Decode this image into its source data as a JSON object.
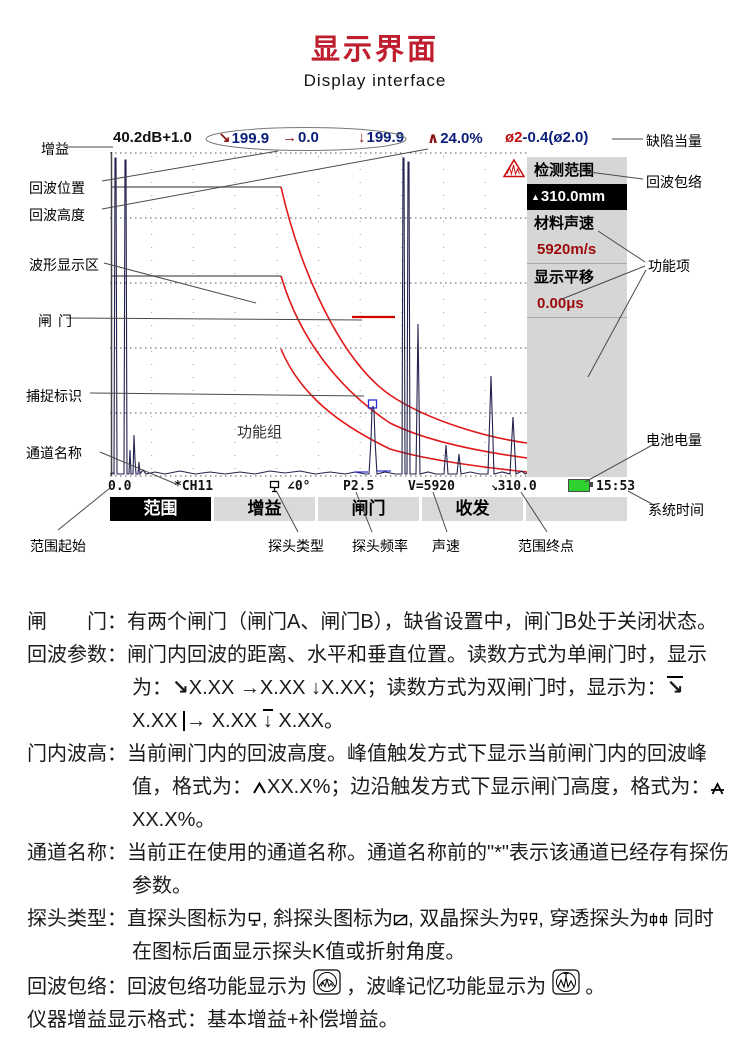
{
  "page": {
    "title": "显示界面",
    "subtitle": "Display interface"
  },
  "screen": {
    "top_bar": {
      "gain": "40.2dB+1.0",
      "echo_depth": "199.9",
      "echo_horizontal": "0.0",
      "echo_vertical": "199.9",
      "gate_peak": "24.0%",
      "defect_equiv_prefix": "ø2",
      "defect_equiv_suffix": "-0.4(ø2.0)"
    },
    "plot": {
      "function_group_label": "功能组"
    },
    "panel": {
      "items": [
        {
          "label": "检测范围",
          "value": "310.0mm"
        },
        {
          "label": "材料声速",
          "value": "5920m/s"
        },
        {
          "label": "显示平移",
          "value": "0.00μs"
        }
      ]
    },
    "bottom_bar": {
      "range_start": "0.0",
      "channel": "*CH11",
      "probe_angle": "∠0°",
      "probe_frequency": "P2.5",
      "velocity": "V=5920",
      "range_end": "310.0",
      "time": "15:53"
    },
    "menu": {
      "items": [
        "范围",
        "增益",
        "闸门",
        "收发"
      ],
      "selected": "范围"
    }
  },
  "callouts": {
    "gain": "增益",
    "echo_position": "回波位置",
    "echo_height": "回波高度",
    "waveform_area": "波形显示区",
    "gate": "闸门",
    "capture_mark": "捕捉标识",
    "channel_name": "通道名称",
    "defect_equivalent": "缺陷当量",
    "echo_envelope": "回波包络",
    "function_items": "功能项",
    "battery_level": "电池电量",
    "system_time": "系统时间",
    "range_start": "范围起始",
    "probe_type": "探头类型",
    "probe_frequency": "探头频率",
    "sound_velocity": "声速",
    "range_end": "范围终点"
  },
  "definitions": {
    "rows": [
      {
        "label": "闸　　门：",
        "segments": [
          {
            "t": "有两个闸门（闸门A、闸门B），缺省设置中，闸门B处于关闭状态。"
          }
        ]
      },
      {
        "label": "回波参数：",
        "segments": [
          {
            "t": "闸门内回波的距离、水平和垂直位置。读数方式为单闸门时，显示为："
          },
          {
            "i": "gate-depth-arrow-icon"
          },
          {
            "t": "X.XX "
          },
          {
            "i": "gate-horizontal-arrow-icon"
          },
          {
            "t": "X.XX "
          },
          {
            "i": "gate-vertical-arrow-icon"
          },
          {
            "t": "X.XX；读数方式为双闸门时，显示为："
          },
          {
            "i": "dual-gate-depth-arrow-icon"
          },
          {
            "t": " X.XX "
          },
          {
            "i": "dual-gate-horizontal-arrow-icon"
          },
          {
            "t": " X.XX "
          },
          {
            "i": "dual-gate-vertical-arrow-icon"
          },
          {
            "t": " X.XX。"
          }
        ]
      },
      {
        "label": "门内波高：",
        "segments": [
          {
            "t": "当前闸门内的回波高度。峰值触发方式下显示当前闸门内的回波峰值，格式为："
          },
          {
            "i": "peak-trigger-icon"
          },
          {
            "t": "XX.X%；边沿触发方式下显示闸门高度，格式为："
          },
          {
            "i": "edge-trigger-icon"
          },
          {
            "t": " XX.X%。"
          }
        ]
      },
      {
        "label": "通道名称：",
        "segments": [
          {
            "t": "当前正在使用的通道名称。通道名称前的\"*\"表示该通道已经存有探伤参数。"
          }
        ]
      },
      {
        "label": "探头类型：",
        "segments": [
          {
            "t": "直探头图标为"
          },
          {
            "i": "straight-probe-icon"
          },
          {
            "t": ", 斜探头图标为"
          },
          {
            "i": "angle-probe-icon"
          },
          {
            "t": ", 双晶探头为"
          },
          {
            "i": "dual-probe-icon"
          },
          {
            "t": ", 穿透探头为"
          },
          {
            "i": "through-probe-icon"
          },
          {
            "t": " 同时在图标后面显示探头K值或折射角度。"
          }
        ]
      },
      {
        "label": "回波包络：",
        "segments": [
          {
            "t": "回波包络功能显示为 "
          },
          {
            "i": "echo-envelope-icon"
          },
          {
            "t": " ，波峰记忆功能显示为 "
          },
          {
            "i": "peak-memory-icon"
          },
          {
            "t": " 。"
          }
        ]
      },
      {
        "label": "仪器增益显示格式：",
        "segments": [
          {
            "t": "基本增益+补偿增益。"
          }
        ]
      }
    ]
  },
  "colors": {
    "title_red": "#be1e2d",
    "dac_curve_red": "#e01818",
    "value_navy": "#0a1d78",
    "arrow_maroon": "#8c1212",
    "panel_gray": "#d6d6d6",
    "menu_gray": "#d9d9d9",
    "battery_green": "#2fd12f"
  }
}
